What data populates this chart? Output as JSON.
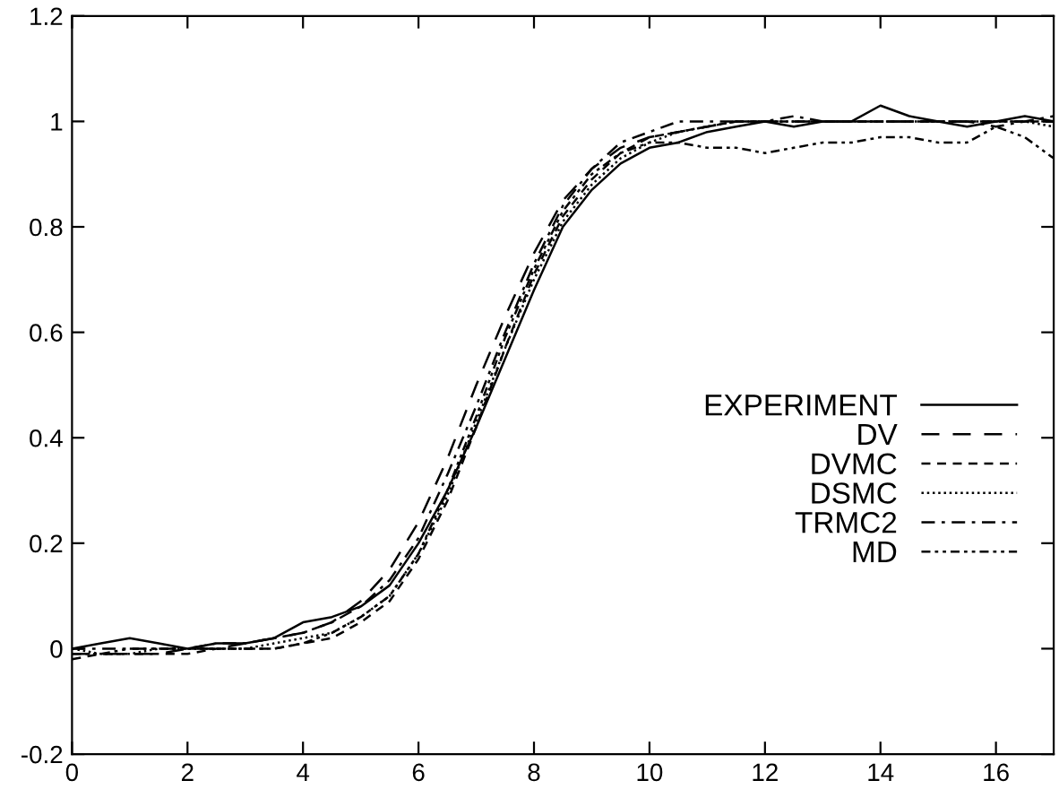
{
  "chart_data": {
    "type": "line",
    "x": [
      0,
      0.5,
      1,
      1.5,
      2,
      2.5,
      3,
      3.5,
      4,
      4.5,
      5,
      5.5,
      6,
      6.5,
      7,
      7.5,
      8,
      8.5,
      9,
      9.5,
      10,
      10.5,
      11,
      11.5,
      12,
      12.5,
      13,
      13.5,
      14,
      14.5,
      15,
      15.5,
      16,
      16.5,
      17
    ],
    "series": [
      {
        "name": "EXPERIMENT",
        "color": "#000000",
        "line_style": "solid",
        "values": [
          0.0,
          0.01,
          0.02,
          0.01,
          0.0,
          0.01,
          0.01,
          0.02,
          0.05,
          0.06,
          0.08,
          0.12,
          0.2,
          0.3,
          0.42,
          0.55,
          0.68,
          0.8,
          0.87,
          0.92,
          0.95,
          0.96,
          0.98,
          0.99,
          1.0,
          0.99,
          1.0,
          1.0,
          1.03,
          1.01,
          1.0,
          0.99,
          1.0,
          1.01,
          1.0
        ]
      },
      {
        "name": "DV",
        "color": "#000000",
        "line_style": "longdash",
        "values": [
          -0.01,
          -0.01,
          -0.01,
          -0.01,
          0.0,
          0.0,
          0.01,
          0.02,
          0.03,
          0.05,
          0.09,
          0.15,
          0.24,
          0.36,
          0.5,
          0.63,
          0.75,
          0.85,
          0.91,
          0.95,
          0.97,
          0.98,
          0.99,
          1.0,
          1.0,
          1.0,
          1.0,
          1.0,
          1.0,
          1.0,
          1.0,
          1.0,
          1.0,
          1.0,
          1.0
        ]
      },
      {
        "name": "DVMC",
        "color": "#000000",
        "line_style": "dashed",
        "values": [
          -0.02,
          -0.01,
          -0.01,
          -0.01,
          -0.01,
          0.0,
          0.0,
          0.0,
          0.01,
          0.02,
          0.05,
          0.09,
          0.17,
          0.28,
          0.42,
          0.57,
          0.71,
          0.82,
          0.89,
          0.94,
          0.97,
          0.98,
          0.99,
          1.0,
          1.0,
          1.0,
          1.0,
          1.0,
          1.0,
          1.0,
          1.0,
          1.0,
          1.0,
          1.0,
          1.0
        ]
      },
      {
        "name": "DSMC",
        "color": "#000000",
        "line_style": "dotted",
        "values": [
          0.0,
          -0.01,
          -0.01,
          0.0,
          0.0,
          0.0,
          0.0,
          0.01,
          0.02,
          0.03,
          0.06,
          0.1,
          0.18,
          0.29,
          0.43,
          0.57,
          0.7,
          0.81,
          0.88,
          0.93,
          0.96,
          0.98,
          0.99,
          1.0,
          1.0,
          1.0,
          1.0,
          1.0,
          1.0,
          1.0,
          1.0,
          1.0,
          1.0,
          1.0,
          0.99
        ]
      },
      {
        "name": "TRMC2",
        "color": "#000000",
        "line_style": "dashdot",
        "values": [
          0.0,
          0.0,
          0.0,
          0.0,
          0.0,
          0.01,
          0.01,
          0.02,
          0.03,
          0.05,
          0.08,
          0.13,
          0.21,
          0.33,
          0.46,
          0.6,
          0.73,
          0.84,
          0.91,
          0.96,
          0.98,
          1.0,
          1.0,
          1.0,
          1.0,
          1.01,
          1.0,
          1.0,
          1.0,
          1.0,
          1.0,
          1.0,
          0.99,
          1.0,
          1.01
        ]
      },
      {
        "name": "MD",
        "color": "#000000",
        "line_style": "dashdotdot",
        "values": [
          -0.01,
          -0.01,
          0.0,
          0.0,
          0.0,
          0.0,
          0.0,
          0.0,
          0.01,
          0.03,
          0.06,
          0.1,
          0.18,
          0.3,
          0.44,
          0.59,
          0.72,
          0.83,
          0.9,
          0.94,
          0.96,
          0.96,
          0.95,
          0.95,
          0.94,
          0.95,
          0.96,
          0.96,
          0.97,
          0.97,
          0.96,
          0.96,
          0.99,
          0.97,
          0.93
        ]
      }
    ],
    "xlim": [
      0,
      17
    ],
    "ylim": [
      -0.2,
      1.2
    ],
    "xticks": [
      0,
      2,
      4,
      6,
      8,
      10,
      12,
      14,
      16
    ],
    "yticks": [
      -0.2,
      0,
      0.2,
      0.4,
      0.6,
      0.8,
      1,
      1.2
    ],
    "grid": false,
    "legend": "right",
    "marker": "none"
  }
}
